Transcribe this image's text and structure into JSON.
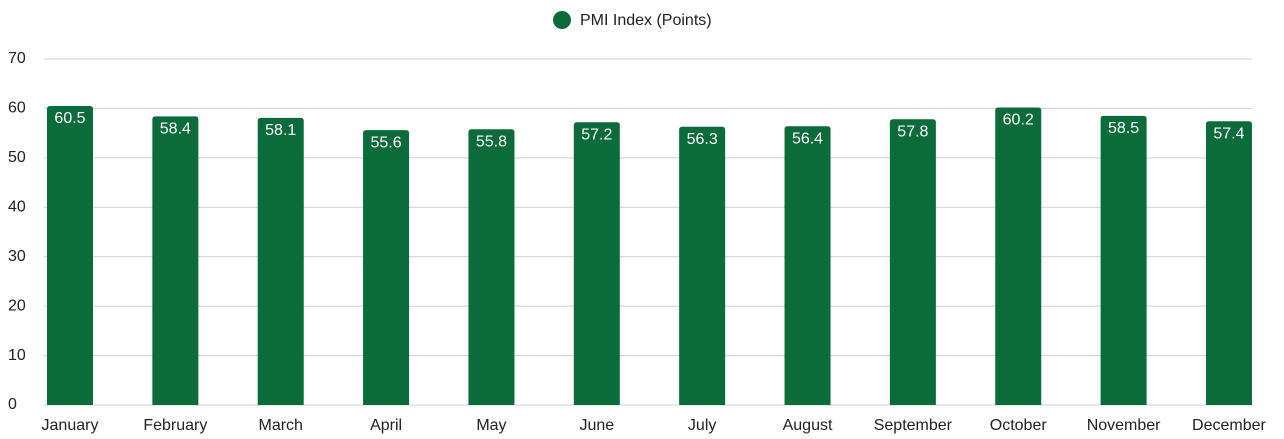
{
  "chart_data": {
    "type": "bar",
    "categories": [
      "January",
      "February",
      "March",
      "April",
      "May",
      "June",
      "July",
      "August",
      "September",
      "October",
      "November",
      "December"
    ],
    "series": [
      {
        "name": "PMI Index (Points)",
        "color": "#0b6b3a",
        "values": [
          60.5,
          58.4,
          58.1,
          55.6,
          55.8,
          57.2,
          56.3,
          56.4,
          57.8,
          60.2,
          58.5,
          57.4
        ]
      }
    ],
    "ylim": [
      0,
      70
    ],
    "yticks": [
      0,
      10,
      20,
      30,
      40,
      50,
      60,
      70
    ],
    "grid": true,
    "legend": "top"
  }
}
